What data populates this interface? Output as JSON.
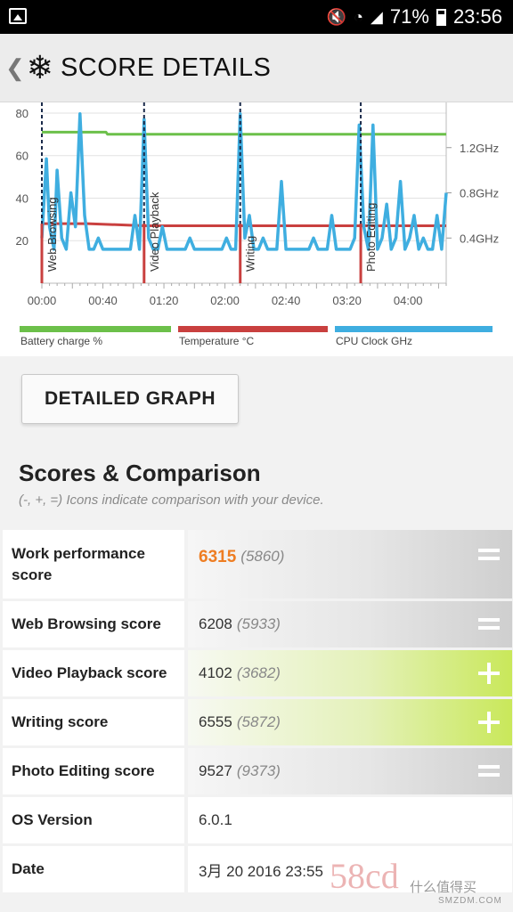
{
  "status_bar": {
    "battery": "71%",
    "time": "23:56"
  },
  "app_bar": {
    "back": "❮",
    "logo": "❄",
    "title": "SCORE DETAILS"
  },
  "chart_data": {
    "type": "line",
    "x_ticks": [
      "00:00",
      "00:40",
      "01:20",
      "02:00",
      "02:40",
      "03:20",
      "04:00"
    ],
    "x_range_minutes": [
      0,
      265
    ],
    "y_left_ticks": [
      "20",
      "40",
      "60",
      "80"
    ],
    "y_left_range": [
      0,
      85
    ],
    "y_right_ticks": [
      "0.4GHz",
      "0.8GHz",
      "1.2GHz"
    ],
    "y_right_range_ghz": [
      0,
      1.6
    ],
    "segments": [
      {
        "label": "Web Browsing",
        "start": 0
      },
      {
        "label": "Video Playback",
        "start": 67
      },
      {
        "label": "Writing",
        "start": 130
      },
      {
        "label": "Photo Editing",
        "start": 209
      }
    ],
    "series": [
      {
        "name": "Battery charge %",
        "color": "#6cc04a",
        "x": [
          0,
          42,
          43,
          265
        ],
        "y": [
          71,
          71,
          70,
          70
        ]
      },
      {
        "name": "Temperature °C",
        "color": "#c9403f",
        "x": [
          0,
          30,
          67,
          90,
          130,
          160,
          209,
          265
        ],
        "y": [
          28,
          28,
          27,
          27,
          27,
          27,
          27,
          27
        ]
      },
      {
        "name": "CPU Clock GHz",
        "color": "#3faee0",
        "x": [
          0,
          3,
          5,
          8,
          10,
          13,
          16,
          19,
          22,
          25,
          28,
          31,
          34,
          37,
          40,
          43,
          46,
          49,
          52,
          55,
          58,
          61,
          64,
          67,
          70,
          73,
          76,
          79,
          82,
          85,
          88,
          91,
          94,
          97,
          100,
          103,
          106,
          109,
          112,
          115,
          118,
          121,
          124,
          127,
          130,
          133,
          136,
          139,
          142,
          145,
          148,
          151,
          154,
          157,
          160,
          163,
          166,
          169,
          172,
          175,
          178,
          181,
          184,
          187,
          190,
          193,
          196,
          199,
          202,
          205,
          208,
          211,
          214,
          217,
          220,
          223,
          226,
          229,
          232,
          235,
          238,
          241,
          244,
          247,
          250,
          253,
          256,
          259,
          262,
          265
        ],
        "y": [
          0.4,
          1.1,
          0.5,
          0.3,
          1.0,
          0.4,
          0.3,
          0.8,
          0.5,
          1.5,
          0.6,
          0.3,
          0.3,
          0.4,
          0.3,
          0.3,
          0.3,
          0.3,
          0.3,
          0.3,
          0.3,
          0.6,
          0.3,
          1.45,
          0.4,
          0.3,
          0.3,
          0.5,
          0.3,
          0.3,
          0.3,
          0.3,
          0.3,
          0.4,
          0.3,
          0.3,
          0.3,
          0.3,
          0.3,
          0.3,
          0.3,
          0.4,
          0.3,
          0.3,
          1.5,
          0.4,
          0.6,
          0.3,
          0.3,
          0.4,
          0.3,
          0.3,
          0.3,
          0.9,
          0.3,
          0.3,
          0.3,
          0.3,
          0.3,
          0.3,
          0.4,
          0.3,
          0.3,
          0.3,
          0.6,
          0.3,
          0.3,
          0.3,
          0.3,
          0.4,
          1.4,
          0.5,
          0.3,
          1.4,
          0.3,
          0.4,
          0.7,
          0.3,
          0.4,
          0.9,
          0.3,
          0.4,
          0.6,
          0.3,
          0.4,
          0.3,
          0.3,
          0.6,
          0.3,
          0.8
        ]
      }
    ],
    "legend": [
      "Battery charge %",
      "Temperature °C",
      "CPU Clock GHz"
    ]
  },
  "button": {
    "label": "DETAILED GRAPH"
  },
  "section": {
    "title": "Scores & Comparison",
    "subtitle": "(-, +, =) Icons indicate comparison with your device."
  },
  "rows": [
    {
      "label": "Work performance score",
      "value": "6315",
      "compare": "(5860)",
      "indicator": "equal"
    },
    {
      "label": "Web Browsing score",
      "value": "6208",
      "compare": "(5933)",
      "indicator": "equal"
    },
    {
      "label": "Video Playback score",
      "value": "4102",
      "compare": "(3682)",
      "indicator": "plus"
    },
    {
      "label": "Writing score",
      "value": "6555",
      "compare": "(5872)",
      "indicator": "plus"
    },
    {
      "label": "Photo Editing score",
      "value": "9527",
      "compare": "(9373)",
      "indicator": "equal"
    },
    {
      "label": "OS Version",
      "value": "6.0.1"
    },
    {
      "label": "Date",
      "value": "3月 20 2016 23:55"
    }
  ],
  "watermark": {
    "mark": "58cd",
    "text": "什么值得买",
    "sub": "SMZDM.COM"
  }
}
